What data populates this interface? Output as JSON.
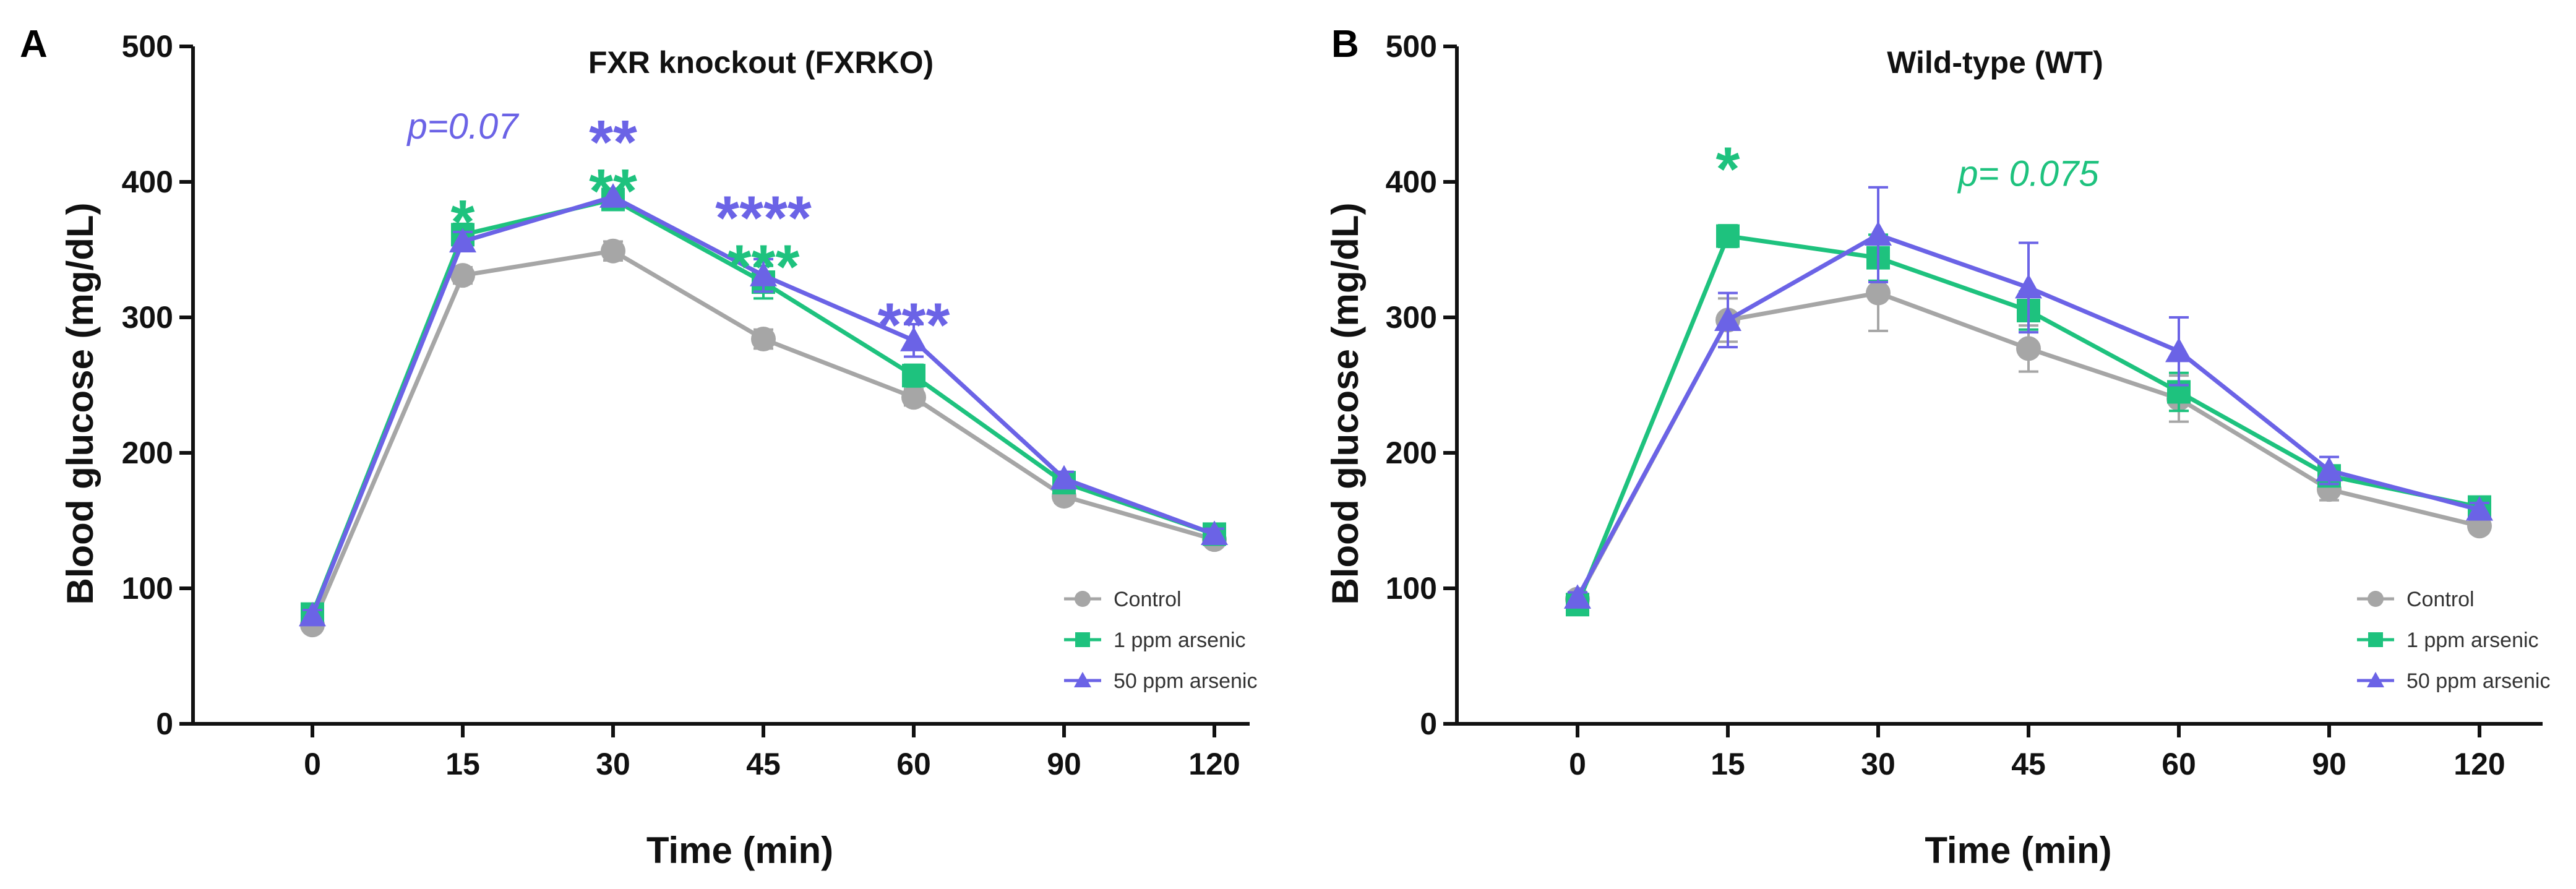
{
  "colors": {
    "control": "#A6A6A6",
    "ppm1": "#1EC27E",
    "ppm50": "#6B63E6",
    "axis": "#111111"
  },
  "chart_data": [
    {
      "panel": "A",
      "type": "line",
      "title": "FXR knockout (FXRKO)",
      "xlabel": "Time (min)",
      "ylabel": "Blood glucose (mg/dL)",
      "categories": [
        "0",
        "15",
        "30",
        "45",
        "60",
        "90",
        "120"
      ],
      "yticks": [
        "0",
        "100",
        "200",
        "300",
        "400",
        "500"
      ],
      "ylim": [
        0,
        500
      ],
      "legend_position": "bottom-right",
      "series": [
        {
          "name": "Control",
          "key": "control",
          "marker": "circle",
          "values": [
            73,
            331,
            349,
            284,
            241,
            168,
            136
          ],
          "errors": [
            4,
            6,
            7,
            7,
            6,
            5,
            4
          ]
        },
        {
          "name": "1 ppm arsenic",
          "key": "ppm1",
          "marker": "square",
          "values": [
            81,
            361,
            387,
            326,
            257,
            178,
            140
          ],
          "errors": [
            4,
            8,
            6,
            12,
            8,
            5,
            4
          ]
        },
        {
          "name": "50 ppm arsenic",
          "key": "ppm50",
          "marker": "triangle",
          "values": [
            80,
            356,
            389,
            331,
            283,
            181,
            140
          ],
          "errors": [
            4,
            7,
            6,
            12,
            12,
            5,
            4
          ]
        }
      ],
      "annotations": [
        {
          "text": "p=0.07",
          "style": "pval",
          "color": "ppm50",
          "x": "15",
          "y": 432
        },
        {
          "text": "*",
          "style": "sig",
          "color": "ppm1",
          "x": "15",
          "y": 373
        },
        {
          "text": "**",
          "style": "sig",
          "color": "ppm50",
          "x": "30",
          "y": 432
        },
        {
          "text": "**",
          "style": "sig",
          "color": "ppm1",
          "x": "30",
          "y": 396
        },
        {
          "text": "****",
          "style": "sig",
          "color": "ppm50",
          "x": "45",
          "y": 376
        },
        {
          "text": "***",
          "style": "sig",
          "color": "ppm1",
          "x": "45",
          "y": 340
        },
        {
          "text": "***",
          "style": "sig",
          "color": "ppm50",
          "x": "60",
          "y": 297
        }
      ]
    },
    {
      "panel": "B",
      "type": "line",
      "title": "Wild-type (WT)",
      "xlabel": "Time (min)",
      "ylabel": "Blood glucose (mg/dL)",
      "categories": [
        "0",
        "15",
        "30",
        "45",
        "60",
        "90",
        "120"
      ],
      "yticks": [
        "0",
        "100",
        "200",
        "300",
        "400",
        "500"
      ],
      "ylim": [
        0,
        500
      ],
      "legend_position": "bottom-right",
      "series": [
        {
          "name": "Control",
          "key": "control",
          "marker": "circle",
          "values": [
            92,
            298,
            318,
            277,
            240,
            173,
            146
          ],
          "errors": [
            4,
            16,
            28,
            17,
            17,
            8,
            5
          ]
        },
        {
          "name": "1 ppm arsenic",
          "key": "ppm1",
          "marker": "square",
          "values": [
            88,
            360,
            344,
            305,
            245,
            183,
            160
          ],
          "errors": [
            4,
            8,
            17,
            14,
            14,
            7,
            5
          ]
        },
        {
          "name": "50 ppm arsenic",
          "key": "ppm50",
          "marker": "triangle",
          "values": [
            93,
            298,
            361,
            322,
            275,
            187,
            158
          ],
          "errors": [
            4,
            20,
            35,
            33,
            25,
            10,
            5
          ]
        }
      ],
      "annotations": [
        {
          "text": "*",
          "style": "sig",
          "color": "ppm1",
          "x": "15",
          "y": 412
        },
        {
          "text": "p= 0.075",
          "style": "pval",
          "color": "ppm1",
          "x": "45",
          "y": 397
        }
      ]
    }
  ]
}
